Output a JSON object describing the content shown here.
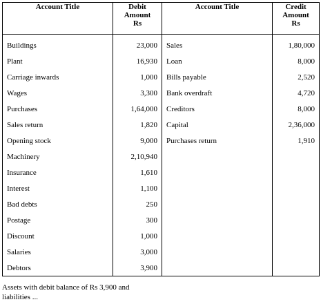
{
  "headers": {
    "debit_title": "Account Title",
    "debit_amount": [
      "Debit",
      "Amount",
      "Rs"
    ],
    "credit_title": "Account Title",
    "credit_amount": [
      "Credit",
      "Amount",
      "Rs"
    ]
  },
  "debit": [
    {
      "title": "Buildings",
      "amount": "23,000"
    },
    {
      "title": "Plant",
      "amount": "16,930"
    },
    {
      "title": "Carriage inwards",
      "amount": "1,000"
    },
    {
      "title": "Wages",
      "amount": "3,300"
    },
    {
      "title": "Purchases",
      "amount": "1,64,000"
    },
    {
      "title": "Sales return",
      "amount": "1,820"
    },
    {
      "title": "Opening stock",
      "amount": "9,000"
    },
    {
      "title": "Machinery",
      "amount": "2,10,940"
    },
    {
      "title": "Insurance",
      "amount": "1,610"
    },
    {
      "title": "Interest",
      "amount": "1,100"
    },
    {
      "title": "Bad debts",
      "amount": "250"
    },
    {
      "title": "Postage",
      "amount": "300"
    },
    {
      "title": "Discount",
      "amount": "1,000"
    },
    {
      "title": "Salaries",
      "amount": "3,000"
    },
    {
      "title": "Debtors",
      "amount": "3,900"
    }
  ],
  "credit": [
    {
      "title": "Sales",
      "amount": "1,80,000"
    },
    {
      "title": "Loan",
      "amount": "8,000"
    },
    {
      "title": "Bills payable",
      "amount": "2,520"
    },
    {
      "title": "Bank overdraft",
      "amount": "4,720"
    },
    {
      "title": "Creditors",
      "amount": "8,000"
    },
    {
      "title": "Capital",
      "amount": "2,36,000"
    },
    {
      "title": "Purchases return",
      "amount": "1,910"
    }
  ],
  "footnote": "Assets with debit balance of Rs 3,900 and liabilities ..."
}
